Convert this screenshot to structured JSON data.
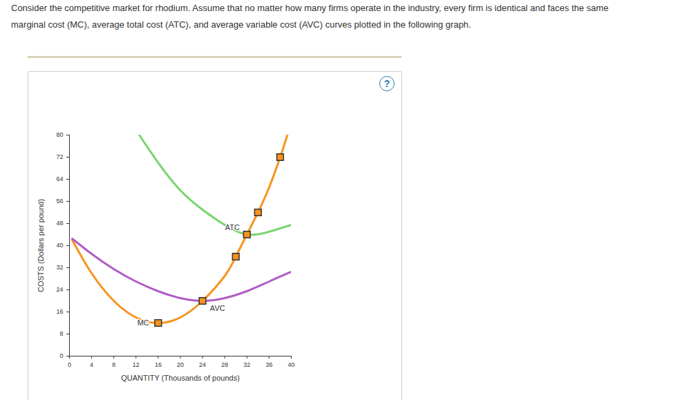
{
  "question": "Consider the competitive market for rhodium. Assume that no matter how many firms operate in the industry, every firm is identical and faces the same marginal cost (MC), average total cost (ATC), and average variable cost (AVC) curves plotted in the following graph.",
  "help_icon": "?",
  "chart_data": {
    "type": "line",
    "x_label": "QUANTITY (Thousands of pounds)",
    "y_label": "COSTS (Dollars per pound)",
    "xlim": [
      0,
      40
    ],
    "xticks": [
      0,
      4,
      8,
      12,
      16,
      20,
      24,
      28,
      32,
      36,
      40
    ],
    "ylim": [
      0,
      80
    ],
    "yticks": [
      0,
      8,
      16,
      24,
      32,
      40,
      48,
      56,
      64,
      72,
      80
    ],
    "grid": false,
    "series": [
      {
        "name": "MC",
        "type": "line",
        "color": "#f7931e",
        "x": [
          0.5,
          4,
          8,
          12,
          16,
          20,
          24,
          28,
          30,
          32,
          34,
          36,
          38,
          39.3
        ],
        "values": [
          42,
          30,
          20,
          14,
          12,
          14,
          20,
          29,
          36,
          44,
          52,
          61,
          72,
          80
        ],
        "label_x": 13.3,
        "label_y": 12
      },
      {
        "name": "ATC",
        "type": "line",
        "color": "#79d46f",
        "x": [
          12.6,
          16,
          20,
          24,
          28,
          32,
          36,
          40
        ],
        "values": [
          80,
          70,
          60,
          53,
          47.5,
          44,
          45,
          47.5
        ],
        "label_x": 29.4,
        "label_y": 46.5
      },
      {
        "name": "AVC",
        "type": "line",
        "color": "#b05cc6",
        "x": [
          0.5,
          4,
          8,
          12,
          16,
          20,
          24,
          28,
          32,
          36,
          40
        ],
        "values": [
          42.5,
          37,
          31.5,
          27,
          23.5,
          21,
          20,
          21,
          23.5,
          27,
          30.5
        ],
        "label_x": 26.7,
        "label_y": 17.25
      },
      {
        "type": "scatter",
        "marker": "square",
        "color": "#f7931e",
        "x": [
          16,
          24,
          30,
          32,
          34,
          38
        ],
        "values": [
          12,
          20,
          36,
          44,
          52,
          72
        ]
      }
    ]
  }
}
